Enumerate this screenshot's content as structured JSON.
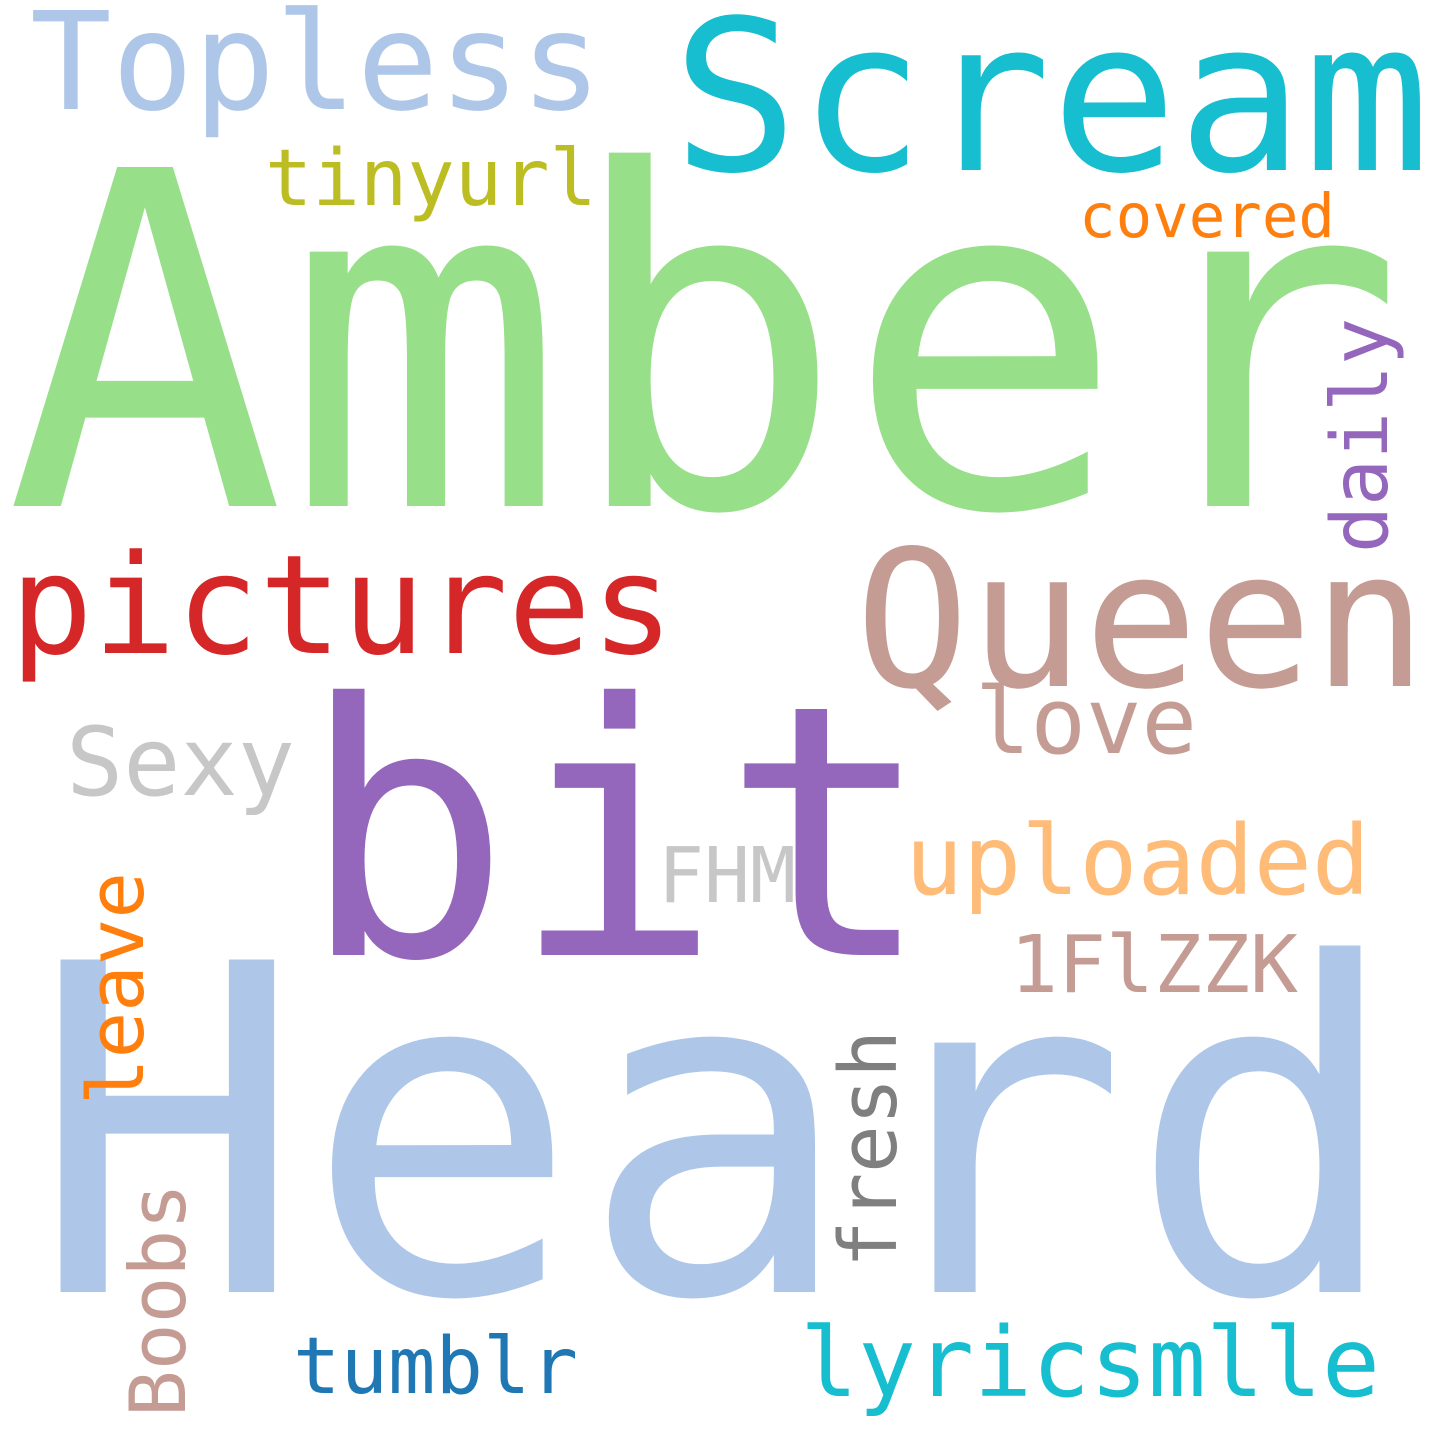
{
  "words": [
    {
      "id": "amber",
      "text": "Amber",
      "color": "#98df8a",
      "vertical": false
    },
    {
      "id": "heard",
      "text": "Heard",
      "color": "#aec7e8",
      "vertical": false
    },
    {
      "id": "bit",
      "text": "bit",
      "color": "#9467bd",
      "vertical": false
    },
    {
      "id": "scream",
      "text": "Scream",
      "color": "#17becf",
      "vertical": false
    },
    {
      "id": "queen",
      "text": "Queen",
      "color": "#c49c94",
      "vertical": false
    },
    {
      "id": "pictures",
      "text": "pictures",
      "color": "#d62728",
      "vertical": false
    },
    {
      "id": "topless",
      "text": "Topless",
      "color": "#aec7e8",
      "vertical": false
    },
    {
      "id": "uploaded",
      "text": "uploaded",
      "color": "#ffbb78",
      "vertical": false
    },
    {
      "id": "lyricsmlle",
      "text": "lyricsmlle",
      "color": "#17becf",
      "vertical": false
    },
    {
      "id": "tinyurl",
      "text": "tinyurl",
      "color": "#bcbd22",
      "vertical": false
    },
    {
      "id": "sexy",
      "text": "Sexy",
      "color": "#c7c7c7",
      "vertical": false
    },
    {
      "id": "love",
      "text": "love",
      "color": "#c49c94",
      "vertical": false
    },
    {
      "id": "1flzzk",
      "text": "1FlZZK",
      "color": "#c49c94",
      "vertical": false
    },
    {
      "id": "tumblr",
      "text": "tumblr",
      "color": "#1f77b4",
      "vertical": false
    },
    {
      "id": "fhm",
      "text": "FHM",
      "color": "#c7c7c7",
      "vertical": false
    },
    {
      "id": "covered",
      "text": "covered",
      "color": "#ff7f0e",
      "vertical": false
    },
    {
      "id": "daily",
      "text": "daily",
      "color": "#9467bd",
      "vertical": true
    },
    {
      "id": "leave",
      "text": "leave",
      "color": "#ff7f0e",
      "vertical": true
    },
    {
      "id": "fresh",
      "text": "fresh",
      "color": "#7f7f7f",
      "vertical": true
    },
    {
      "id": "boobs",
      "text": "Boobs",
      "color": "#c49c94",
      "vertical": true
    }
  ]
}
